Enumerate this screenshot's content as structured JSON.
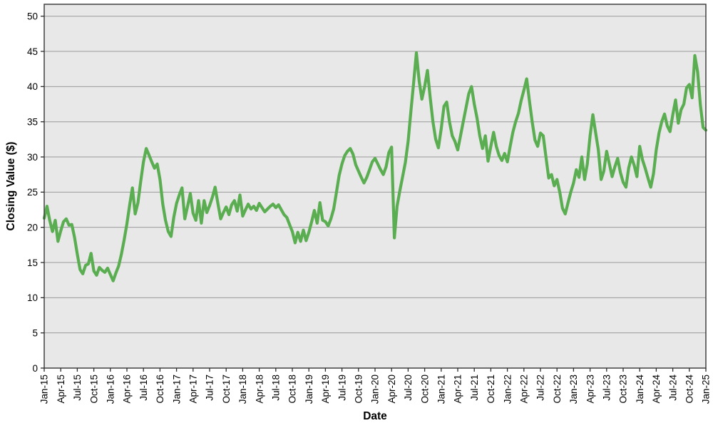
{
  "chart_data": {
    "type": "line",
    "title": "",
    "xlabel": "Date",
    "ylabel": "Closing Value ($)",
    "legend": "none",
    "grid": "horizontal",
    "plot_bg": "#e8e8e8",
    "grid_color": "#9a9a9a",
    "frame_color": "#404040",
    "ylim": [
      0,
      51.7
    ],
    "y_ticks": [
      0,
      5,
      10,
      15,
      20,
      25,
      30,
      35,
      40,
      45,
      50
    ],
    "x_tick_labels": [
      "Jan-15",
      "Apr-15",
      "Jul-15",
      "Oct-15",
      "Jan-16",
      "Apr-16",
      "Jul-16",
      "Oct-16",
      "Jan-17",
      "Apr-17",
      "Jul-17",
      "Oct-17",
      "Jan-18",
      "Apr-18",
      "Jul-18",
      "Oct-18",
      "Jan-19",
      "Apr-19",
      "Jul-19",
      "Oct-19",
      "Jan-20",
      "Apr-20",
      "Jul-20",
      "Oct-20",
      "Jan-21",
      "Apr-21",
      "Jul-21",
      "Oct-21",
      "Jan-22",
      "Apr-22",
      "Jul-22",
      "Oct-22",
      "Jan-23",
      "Apr-23",
      "Jul-23",
      "Oct-23",
      "Jan-24",
      "Apr-24",
      "Jul-24",
      "Oct-24",
      "Jan-25"
    ],
    "series": [
      {
        "name": "Closing Value",
        "color": "#5aad50",
        "start": "Jan-2015",
        "end": "Jan-2025",
        "interval": "semi-monthly",
        "values": [
          21.3,
          23.0,
          21.0,
          19.4,
          21.0,
          18.0,
          19.5,
          20.8,
          21.2,
          20.3,
          20.4,
          18.6,
          16.2,
          14.0,
          13.4,
          14.6,
          14.8,
          16.3,
          13.8,
          13.2,
          14.3,
          13.9,
          13.6,
          14.2,
          13.3,
          12.4,
          13.5,
          14.5,
          16.2,
          18.2,
          20.5,
          23.2,
          25.6,
          21.9,
          23.5,
          26.5,
          29.3,
          31.2,
          30.3,
          29.3,
          28.4,
          29.0,
          26.8,
          23.3,
          21.0,
          19.4,
          18.7,
          21.4,
          23.4,
          24.6,
          25.6,
          21.2,
          23.0,
          24.8,
          22.0,
          21.0,
          23.8,
          20.6,
          23.8,
          22.1,
          23.1,
          24.3,
          25.7,
          23.4,
          21.2,
          22.1,
          22.9,
          21.8,
          23.2,
          23.8,
          22.3,
          24.6,
          21.6,
          22.5,
          23.3,
          22.6,
          23.0,
          22.4,
          23.4,
          22.8,
          22.2,
          22.6,
          23.0,
          23.3,
          22.8,
          23.2,
          22.5,
          21.8,
          21.4,
          20.4,
          19.4,
          17.8,
          19.3,
          18.0,
          19.6,
          18.1,
          19.3,
          20.8,
          22.4,
          20.6,
          23.5,
          21.0,
          20.8,
          20.2,
          21.2,
          22.6,
          25.0,
          27.4,
          29.0,
          30.2,
          30.8,
          31.2,
          30.4,
          28.9,
          28.0,
          27.1,
          26.3,
          27.1,
          28.2,
          29.3,
          29.8,
          29.0,
          28.2,
          27.5,
          28.6,
          30.6,
          31.4,
          18.5,
          23.0,
          25.2,
          27.2,
          29.2,
          32.2,
          36.5,
          40.5,
          44.8,
          40.8,
          38.2,
          40.0,
          42.3,
          38.5,
          35.0,
          32.5,
          31.3,
          34.0,
          37.2,
          37.8,
          35.0,
          33.0,
          32.2,
          31.0,
          33.0,
          35.0,
          37.0,
          39.0,
          40.0,
          37.5,
          35.5,
          33.0,
          31.2,
          33.0,
          29.4,
          31.5,
          33.5,
          31.5,
          30.2,
          29.5,
          30.5,
          29.3,
          31.5,
          33.5,
          35.0,
          36.2,
          38.0,
          39.5,
          41.1,
          38.0,
          35.0,
          32.4,
          31.5,
          33.4,
          33.0,
          30.0,
          27.0,
          27.5,
          25.9,
          26.8,
          25.0,
          22.7,
          21.9,
          23.5,
          25.0,
          26.3,
          28.2,
          27.1,
          30.0,
          26.8,
          29.0,
          33.0,
          36.0,
          33.5,
          31.0,
          26.8,
          28.0,
          30.8,
          29.0,
          27.2,
          28.6,
          29.8,
          27.8,
          26.4,
          25.7,
          28.4,
          30.0,
          28.8,
          27.2,
          31.5,
          29.6,
          28.4,
          27.0,
          25.7,
          27.6,
          31.0,
          33.4,
          35.0,
          36.1,
          34.4,
          33.6,
          36.0,
          38.1,
          34.8,
          36.7,
          37.5,
          39.8,
          40.3,
          38.4,
          44.4,
          42.1,
          37.4,
          34.2,
          33.8
        ]
      }
    ]
  }
}
